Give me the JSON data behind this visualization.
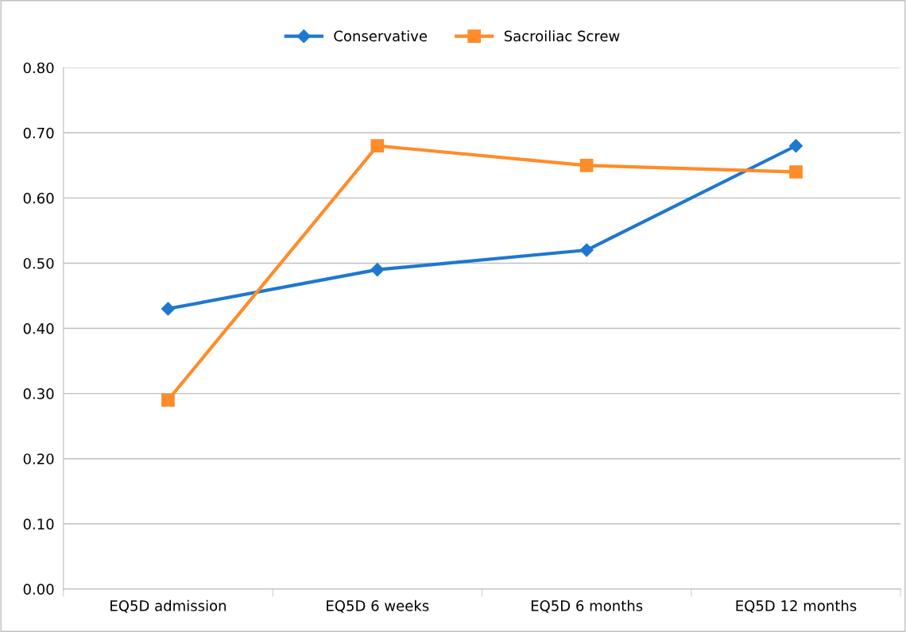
{
  "chart_data": {
    "type": "line",
    "categories": [
      "EQ5D admission",
      "EQ5D 6 weeks",
      "EQ5D 6 months",
      "EQ5D 12 months"
    ],
    "series": [
      {
        "name": "Conservative",
        "color": "#1f77d0",
        "values": [
          0.43,
          0.49,
          0.52,
          0.68
        ],
        "marker": "diamond"
      },
      {
        "name": "Sacroiliac Screw",
        "color": "#ff8c2a",
        "values": [
          0.29,
          0.68,
          0.65,
          0.64
        ],
        "marker": "square"
      }
    ],
    "ylim": [
      0,
      0.8
    ],
    "yticks": [
      {
        "value": 0,
        "label": "0.00"
      },
      {
        "value": 0.1,
        "label": "0.10"
      },
      {
        "value": 0.2,
        "label": "0.20"
      },
      {
        "value": 0.3,
        "label": "0.30"
      },
      {
        "value": 0.4,
        "label": "0.40"
      },
      {
        "value": 0.5,
        "label": "0.50"
      },
      {
        "value": 0.6,
        "label": "0.60"
      },
      {
        "value": 0.7,
        "label": "0.70"
      },
      {
        "value": 0.8,
        "label": "0.80"
      }
    ],
    "grid": "y",
    "legend": "top",
    "line_style": "solid"
  }
}
